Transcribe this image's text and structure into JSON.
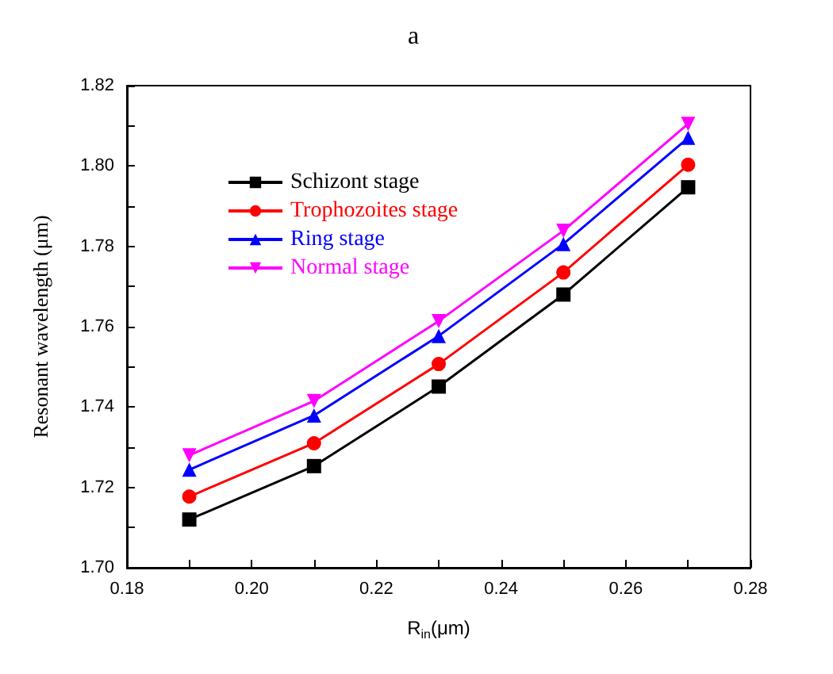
{
  "chart_data": {
    "type": "line",
    "title": "a",
    "xlabel": "R$_{in}$(μm)",
    "ylabel": "Resonant wavelength (μm)",
    "x": [
      0.19,
      0.21,
      0.23,
      0.25,
      0.27
    ],
    "series": [
      {
        "name": "Schizont stage",
        "color": "#000000",
        "marker": "square",
        "values": [
          1.712,
          1.7253,
          1.7451,
          1.768,
          1.7947
        ]
      },
      {
        "name": "Trophozoites stage",
        "color": "#ff0000",
        "marker": "circle",
        "values": [
          1.7177,
          1.731,
          1.7507,
          1.7735,
          1.8003
        ]
      },
      {
        "name": "Ring stage",
        "color": "#0000ff",
        "marker": "triangle",
        "values": [
          1.7244,
          1.7379,
          1.7577,
          1.7806,
          1.807
        ]
      },
      {
        "name": "Normal stage",
        "color": "#ff00ff",
        "marker": "triangle-down",
        "values": [
          1.728,
          1.7415,
          1.7614,
          1.7839,
          1.8105
        ]
      }
    ],
    "xlim": [
      0.18,
      0.28
    ],
    "xticks": [
      0.18,
      {
        "value": 0.19,
        "label": null
      },
      {
        "value": 0.2,
        "label": "0.20"
      },
      {
        "value": 0.21,
        "label": null
      },
      0.22,
      {
        "value": 0.23,
        "label": null
      },
      0.24,
      {
        "value": 0.25,
        "label": null
      },
      0.26,
      {
        "value": 0.27,
        "label": null
      },
      0.28
    ],
    "ylim": [
      1.7,
      1.82
    ],
    "yticks": [
      {
        "value": 1.7,
        "label": "1.70"
      },
      {
        "value": 1.71,
        "label": null
      },
      1.72,
      {
        "value": 1.73,
        "label": null
      },
      1.74,
      {
        "value": 1.75,
        "label": null
      },
      1.76,
      {
        "value": 1.77,
        "label": null
      },
      1.78,
      {
        "value": 1.79,
        "label": null
      },
      {
        "value": 1.8,
        "label": "1.80"
      },
      {
        "value": 1.81,
        "label": null
      },
      1.82
    ],
    "grid": false,
    "legend": "top left",
    "line_style": "solid"
  }
}
